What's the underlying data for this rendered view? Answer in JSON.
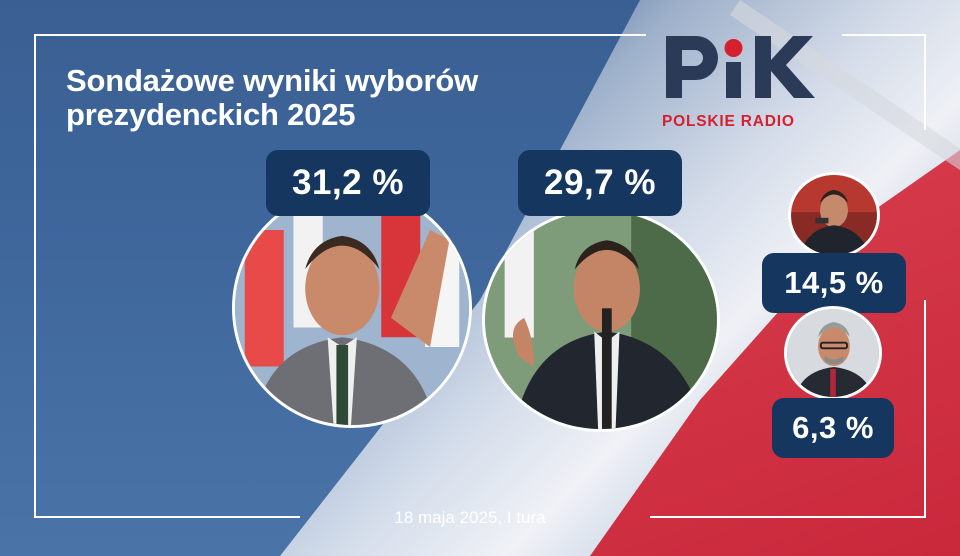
{
  "header": {
    "title_line1": "Sondażowe wyniki wyborów",
    "title_line2": "prezydenckich 2025"
  },
  "logo": {
    "mark": "PiK",
    "subtitle": "POLSKIE RADIO",
    "mark_color": "#2b3b57",
    "accent_color": "#d6202f"
  },
  "candidates": [
    {
      "result": "31,2 %",
      "photo": "candidate-1-photo"
    },
    {
      "result": "29,7 %",
      "photo": "candidate-2-photo"
    },
    {
      "result": "14,5 %",
      "photo": "candidate-3-photo"
    },
    {
      "result": "6,3 %",
      "photo": "candidate-4-photo"
    }
  ],
  "footer": {
    "date": "18 maja 2025, I tura"
  },
  "colors": {
    "background": "#3f679c",
    "badge": "#14365f",
    "flag_red": "#d63b4b"
  }
}
